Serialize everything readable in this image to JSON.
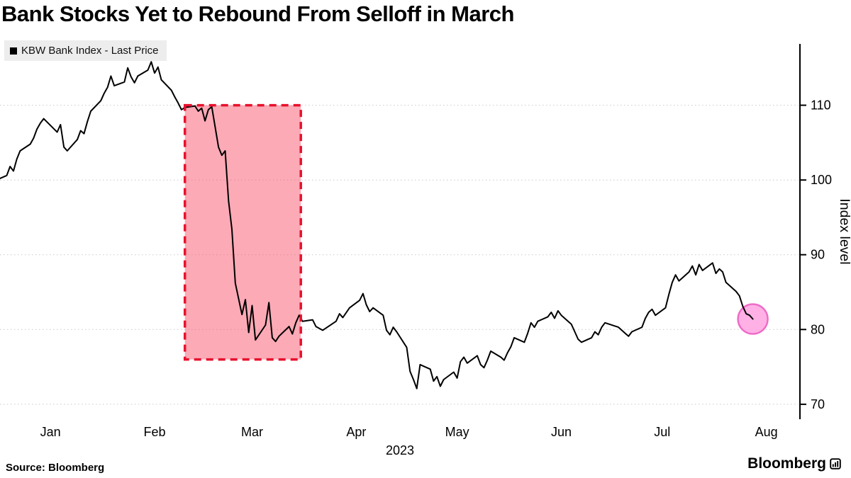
{
  "title": "Bank Stocks Yet to Rebound From Selloff in March",
  "legend": {
    "marker": "black-square-swatch",
    "label": "KBW Bank Index - Last Price"
  },
  "source": "Source:  Bloomberg",
  "brand": {
    "wordmark": "Bloomberg",
    "icon": "mini-bar-chart-icon"
  },
  "chart_data": {
    "type": "line",
    "title": "Bank Stocks Yet to Rebound From Selloff in March",
    "series": [
      {
        "name": "KBW Bank Index - Last Price",
        "x": [
          0,
          2,
          3,
          4,
          5,
          6,
          9,
          10,
          11,
          12,
          13,
          17,
          18,
          19,
          20,
          23,
          24,
          25,
          26,
          27,
          30,
          31,
          32,
          33,
          34,
          37,
          38,
          39,
          40,
          41,
          44,
          45,
          46,
          47,
          48,
          51,
          52,
          53,
          54,
          55,
          58,
          59,
          60,
          61,
          62,
          63,
          65,
          66,
          67,
          68,
          69,
          70,
          72,
          73,
          74,
          75,
          76,
          79,
          80,
          81,
          82,
          83,
          86,
          87,
          88,
          89,
          90,
          93,
          94,
          96,
          100,
          101,
          102,
          104,
          107,
          108,
          109,
          110,
          111,
          114,
          115,
          116,
          117,
          118,
          121,
          122,
          123,
          124,
          125,
          128,
          129,
          130,
          131,
          132,
          135,
          136,
          137,
          138,
          139,
          142,
          143,
          144,
          145,
          146,
          149,
          150,
          151,
          152,
          153,
          156,
          157,
          158,
          159,
          160,
          163,
          164,
          165,
          166,
          167,
          170,
          171,
          172,
          173,
          176,
          177,
          178,
          179,
          180,
          184,
          186,
          187,
          188,
          191,
          192,
          193,
          194,
          195,
          198,
          199,
          200,
          201,
          202,
          205,
          206,
          207,
          208,
          209,
          212,
          213,
          214,
          215,
          216,
          219,
          220,
          221,
          222,
          223,
          224
        ],
        "values": [
          100.2,
          100.6,
          101.8,
          101.2,
          102.8,
          103.9,
          104.8,
          105.6,
          106.8,
          107.6,
          108.2,
          106.4,
          107.4,
          104.4,
          103.9,
          105.4,
          106.6,
          106.2,
          107.8,
          109.2,
          110.6,
          111.6,
          112.4,
          113.9,
          112.6,
          113.1,
          115.0,
          113.8,
          113.0,
          113.9,
          114.7,
          115.8,
          114.3,
          115.1,
          113.4,
          112.0,
          111.1,
          110.3,
          109.4,
          109.7,
          109.9,
          109.2,
          109.6,
          107.9,
          109.4,
          109.8,
          104.4,
          103.3,
          103.9,
          97.2,
          93.4,
          86.2,
          82.0,
          84.0,
          79.6,
          83.2,
          78.6,
          80.6,
          83.6,
          78.9,
          78.4,
          79.1,
          80.4,
          79.4,
          80.9,
          81.9,
          81.1,
          81.3,
          80.4,
          79.9,
          81.1,
          82.1,
          81.6,
          82.9,
          83.9,
          84.8,
          83.3,
          82.4,
          82.9,
          81.9,
          79.9,
          79.3,
          80.3,
          79.7,
          77.6,
          74.4,
          73.3,
          72.1,
          75.3,
          74.7,
          73.1,
          73.7,
          72.4,
          73.3,
          74.3,
          73.5,
          75.7,
          76.3,
          75.5,
          76.5,
          75.3,
          74.9,
          75.9,
          77.1,
          76.3,
          75.9,
          76.9,
          77.7,
          78.9,
          78.3,
          79.5,
          80.9,
          80.3,
          81.1,
          81.7,
          82.3,
          81.5,
          82.5,
          81.9,
          80.7,
          79.7,
          78.7,
          78.3,
          78.9,
          79.7,
          79.3,
          80.3,
          80.9,
          80.3,
          79.5,
          79.1,
          79.7,
          80.3,
          81.5,
          82.3,
          82.7,
          81.9,
          82.9,
          84.7,
          86.3,
          87.3,
          86.5,
          87.7,
          88.5,
          87.3,
          88.7,
          87.9,
          88.9,
          87.5,
          88.1,
          87.7,
          86.3,
          85.1,
          84.5,
          83.1,
          82.1,
          81.9,
          81.4
        ]
      }
    ],
    "x_unit": "day-of-year 2023",
    "x_domain": [
      0,
      238
    ],
    "month_ticks": [
      {
        "label": "Jan",
        "day": 15
      },
      {
        "label": "Feb",
        "day": 46
      },
      {
        "label": "Mar",
        "day": 75
      },
      {
        "label": "Apr",
        "day": 106
      },
      {
        "label": "May",
        "day": 136
      },
      {
        "label": "Jun",
        "day": 167
      },
      {
        "label": "Jul",
        "day": 197
      },
      {
        "label": "Aug",
        "day": 228
      }
    ],
    "year_label": "2023",
    "ylabel": "Index level",
    "y_ticks": [
      70,
      80,
      90,
      100,
      110
    ],
    "ylim": [
      68,
      118.2
    ],
    "grid": "dotted horizontal",
    "legend_position": "top-left",
    "line_color": "#000000",
    "highlight_box": {
      "note": "March selloff highlight",
      "x0_day": 55,
      "x1_day": 89.5,
      "y0": 76,
      "y1": 110,
      "fill": "#f8556e",
      "fill_opacity": 0.5,
      "stroke": "#e8112d",
      "dashed": true
    },
    "end_marker": {
      "day": 224,
      "value": 81.4,
      "radius": 21,
      "fill": "#ffa3e0",
      "fill_opacity": 0.85,
      "stroke": "#ee6cc8"
    }
  }
}
